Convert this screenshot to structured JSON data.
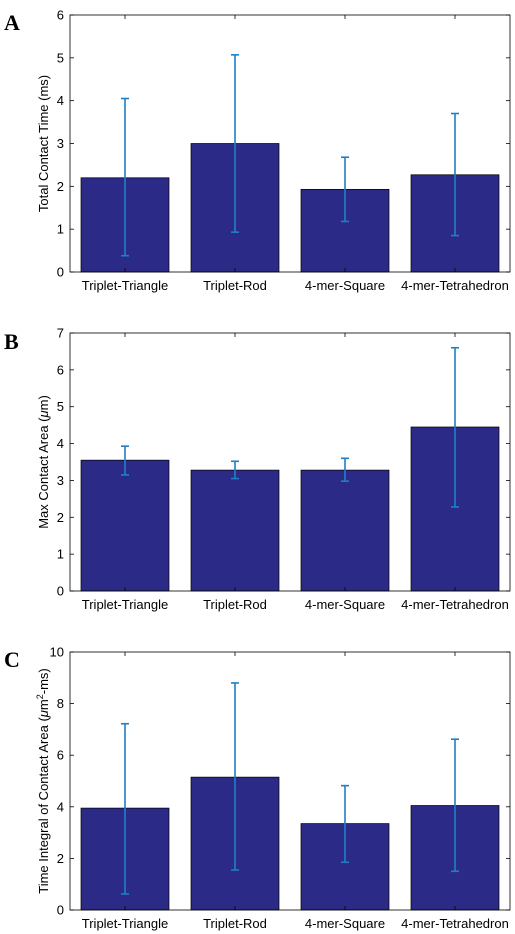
{
  "chart_data": [
    {
      "type": "bar",
      "panel_label": "A",
      "categories": [
        "Triplet-Triangle",
        "Triplet-Rod",
        "4-mer-Square",
        "4-mer-Tetrahedron"
      ],
      "values": [
        2.2,
        3.0,
        1.93,
        2.27
      ],
      "error_low": [
        0.38,
        0.93,
        1.18,
        0.85
      ],
      "error_high": [
        4.05,
        5.07,
        2.68,
        3.7
      ],
      "ylabel": "Total Contact Time (ms)",
      "ylabel_parts": [
        "Total Contact Time (ms)"
      ],
      "ylim": [
        0,
        6
      ],
      "yticks": [
        0,
        1,
        2,
        3,
        4,
        5,
        6
      ],
      "bar_color": "#2b2a86",
      "error_color": "#1f7fc6",
      "grid": false
    },
    {
      "type": "bar",
      "panel_label": "B",
      "categories": [
        "Triplet-Triangle",
        "Triplet-Rod",
        "4-mer-Square",
        "4-mer-Tetrahedron"
      ],
      "values": [
        3.55,
        3.28,
        3.28,
        4.45
      ],
      "error_low": [
        3.15,
        3.05,
        2.98,
        2.28
      ],
      "error_high": [
        3.93,
        3.52,
        3.6,
        6.6
      ],
      "ylabel": "Max Contact Area (μm)",
      "ylabel_parts": [
        "Max Contact Area (",
        "μ",
        "m)"
      ],
      "ylim": [
        0,
        7
      ],
      "yticks": [
        0,
        1,
        2,
        3,
        4,
        5,
        6,
        7
      ],
      "bar_color": "#2b2a86",
      "error_color": "#1f7fc6",
      "grid": false
    },
    {
      "type": "bar",
      "panel_label": "C",
      "categories": [
        "Triplet-Triangle",
        "Triplet-Rod",
        "4-mer-Square",
        "4-mer-Tetrahedron"
      ],
      "values": [
        3.95,
        5.15,
        3.35,
        4.05
      ],
      "error_low": [
        0.62,
        1.55,
        1.85,
        1.5
      ],
      "error_high": [
        7.22,
        8.8,
        4.82,
        6.62
      ],
      "ylabel": "Time Integral of Contact Area (μm2-ms)",
      "ylabel_parts": [
        "Time Integral of Contact Area (",
        "μ",
        "m",
        "2",
        "-ms)"
      ],
      "ylim": [
        0,
        10
      ],
      "yticks": [
        0,
        2,
        4,
        6,
        8,
        10
      ],
      "bar_color": "#2b2a86",
      "error_color": "#1f7fc6",
      "grid": false
    }
  ]
}
